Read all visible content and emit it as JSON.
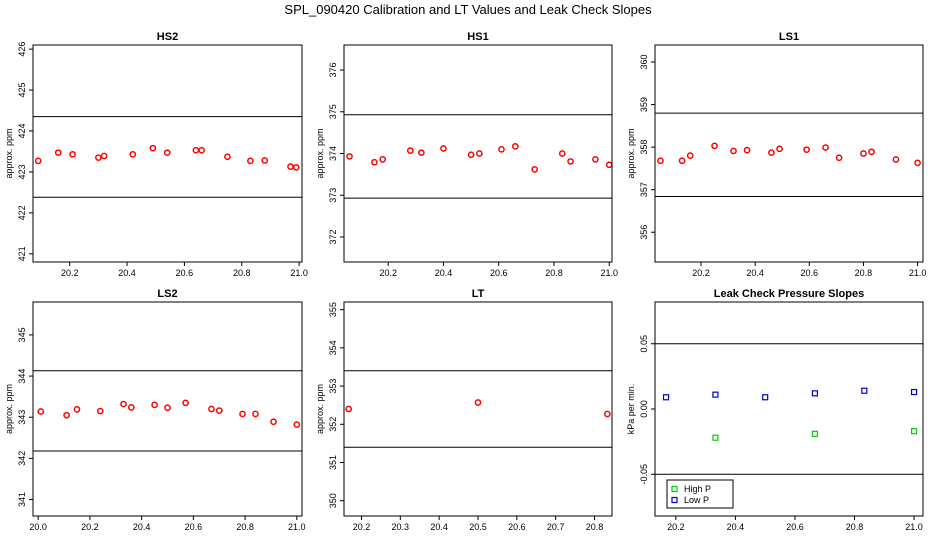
{
  "figure": {
    "title": "SPL_090420  Calibration and LT Values and Leak Check Slopes"
  },
  "chart_data": [
    {
      "type": "scatter",
      "title": "HS2",
      "ylabel": "approx. ppm",
      "xlim": [
        20.072,
        21.01
      ],
      "ylim": [
        420.8,
        426.1
      ],
      "xticks": [
        20.2,
        20.4,
        20.6,
        20.8,
        21.0
      ],
      "xtick_labels": [
        "20.2",
        "20.4",
        "20.6",
        "20.8",
        "21.0"
      ],
      "yticks": [
        421,
        422,
        423,
        424,
        425,
        426
      ],
      "ytick_labels": [
        "421",
        "422",
        "423",
        "424",
        "425",
        "426"
      ],
      "hlines": [
        424.35,
        422.38
      ],
      "series": [
        {
          "color": "#ff0000",
          "x": [
            20.09,
            20.16,
            20.21,
            20.3,
            20.32,
            20.42,
            20.49,
            20.54,
            20.64,
            20.66,
            20.75,
            20.83,
            20.88,
            20.97,
            20.99
          ],
          "y": [
            423.27,
            423.47,
            423.43,
            423.35,
            423.39,
            423.43,
            423.58,
            423.47,
            423.53,
            423.53,
            423.37,
            423.27,
            423.28,
            423.13,
            423.11
          ]
        }
      ]
    },
    {
      "type": "scatter",
      "title": "HS1",
      "ylabel": "approx. ppm",
      "xlim": [
        20.04,
        21.01
      ],
      "ylim": [
        371.4,
        376.6
      ],
      "xticks": [
        20.2,
        20.4,
        20.6,
        20.8,
        21.0
      ],
      "xtick_labels": [
        "20.2",
        "20.4",
        "20.6",
        "20.8",
        "21.0"
      ],
      "yticks": [
        372,
        373,
        374,
        375,
        376
      ],
      "ytick_labels": [
        "372",
        "373",
        "374",
        "375",
        "376"
      ],
      "hlines": [
        374.93,
        372.93
      ],
      "series": [
        {
          "color": "#ff0000",
          "x": [
            20.06,
            20.15,
            20.18,
            20.28,
            20.32,
            20.4,
            20.5,
            20.53,
            20.61,
            20.66,
            20.73,
            20.83,
            20.86,
            20.95,
            21.0
          ],
          "y": [
            373.93,
            373.79,
            373.86,
            374.07,
            374.02,
            374.12,
            373.97,
            374.0,
            374.1,
            374.17,
            373.62,
            374.0,
            373.81,
            373.86,
            373.73
          ]
        }
      ]
    },
    {
      "type": "scatter",
      "title": "LS1",
      "ylabel": "approx. ppm",
      "xlim": [
        20.03,
        21.02
      ],
      "ylim": [
        355.3,
        360.4
      ],
      "xticks": [
        20.2,
        20.4,
        20.6,
        20.8,
        21.0
      ],
      "xtick_labels": [
        "20.2",
        "20.4",
        "20.6",
        "20.8",
        "21.0"
      ],
      "yticks": [
        356,
        357,
        358,
        359,
        360
      ],
      "ytick_labels": [
        "356",
        "357",
        "358",
        "359",
        "360"
      ],
      "hlines": [
        358.8,
        356.84
      ],
      "series": [
        {
          "color": "#ff0000",
          "x": [
            20.05,
            20.13,
            20.16,
            20.25,
            20.32,
            20.37,
            20.46,
            20.49,
            20.59,
            20.66,
            20.71,
            20.8,
            20.83,
            20.92,
            21.0
          ],
          "y": [
            357.68,
            357.68,
            357.8,
            358.03,
            357.91,
            357.93,
            357.87,
            357.96,
            357.94,
            357.99,
            357.75,
            357.85,
            357.89,
            357.71,
            357.63
          ]
        }
      ]
    },
    {
      "type": "scatter",
      "title": "LS2",
      "ylabel": "approx. ppm",
      "xlim": [
        19.98,
        21.02
      ],
      "ylim": [
        340.6,
        345.8
      ],
      "xticks": [
        20.0,
        20.2,
        20.4,
        20.6,
        20.8,
        21.0
      ],
      "xtick_labels": [
        "20.0",
        "20.2",
        "20.4",
        "20.6",
        "20.8",
        "21.0"
      ],
      "yticks": [
        341,
        342,
        343,
        344,
        345
      ],
      "ytick_labels": [
        "341",
        "342",
        "343",
        "344",
        "345"
      ],
      "hlines": [
        344.13,
        342.18
      ],
      "series": [
        {
          "color": "#ff0000",
          "x": [
            20.01,
            20.11,
            20.15,
            20.24,
            20.33,
            20.36,
            20.45,
            20.5,
            20.57,
            20.67,
            20.7,
            20.79,
            20.84,
            20.91,
            21.0
          ],
          "y": [
            343.14,
            343.05,
            343.19,
            343.15,
            343.32,
            343.24,
            343.3,
            343.23,
            343.35,
            343.2,
            343.16,
            343.08,
            343.08,
            342.89,
            342.82
          ]
        }
      ]
    },
    {
      "type": "scatter",
      "title": "LT",
      "ylabel": "approx. ppm",
      "xlim": [
        20.155,
        20.845
      ],
      "ylim": [
        349.6,
        355.2
      ],
      "xticks": [
        20.2,
        20.3,
        20.4,
        20.5,
        20.6,
        20.7,
        20.8
      ],
      "xtick_labels": [
        "20.2",
        "20.3",
        "20.4",
        "20.5",
        "20.6",
        "20.7",
        "20.8"
      ],
      "yticks": [
        350,
        351,
        352,
        353,
        354,
        355
      ],
      "ytick_labels": [
        "350",
        "351",
        "352",
        "353",
        "354",
        "355"
      ],
      "hlines": [
        353.4,
        351.4
      ],
      "series": [
        {
          "color": "#ff0000",
          "x": [
            20.167,
            20.5,
            20.833
          ],
          "y": [
            352.4,
            352.57,
            352.27
          ]
        }
      ]
    },
    {
      "type": "scatter",
      "title": "Leak Check Pressure Slopes",
      "ylabel": "kPa per min.",
      "xlim": [
        20.13,
        21.03
      ],
      "ylim": [
        -0.082,
        0.082
      ],
      "xticks": [
        20.2,
        20.4,
        20.6,
        20.8,
        21.0
      ],
      "xtick_labels": [
        "20.2",
        "20.4",
        "20.6",
        "20.8",
        "21.0"
      ],
      "yticks": [
        -0.05,
        0.0,
        0.05
      ],
      "ytick_labels": [
        "-0.05",
        "0.00",
        "0.05"
      ],
      "hlines": [
        0.05,
        -0.05
      ],
      "legend": {
        "location": "bottom-left"
      },
      "series": [
        {
          "name": "High P",
          "marker": "square",
          "color": "#00cc00",
          "x": [
            20.333,
            20.667,
            21.0
          ],
          "y": [
            -0.022,
            -0.019,
            -0.017
          ]
        },
        {
          "name": "Low P",
          "marker": "square",
          "color": "#0000cc",
          "x": [
            20.167,
            20.333,
            20.5,
            20.667,
            20.833,
            21.0
          ],
          "y": [
            0.009,
            0.011,
            0.009,
            0.012,
            0.014,
            0.013
          ]
        }
      ]
    }
  ]
}
